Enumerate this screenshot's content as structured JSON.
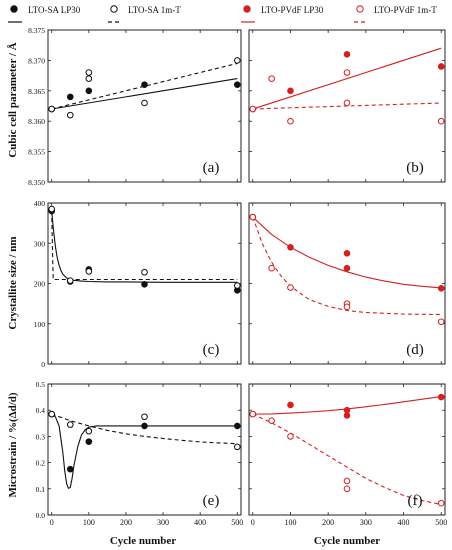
{
  "colors": {
    "black": "#111111",
    "red": "#d42020"
  },
  "legend": [
    {
      "label": "LTO-SA LP30",
      "color": "#111111",
      "marker": "filled",
      "line": "solid"
    },
    {
      "label": "LTO-SA 1m-T",
      "color": "#111111",
      "marker": "open",
      "line": "dashed"
    },
    {
      "label": "LTO-PVdF LP30",
      "color": "#d42020",
      "marker": "filled",
      "line": "solid"
    },
    {
      "label": "LTO-PVdF 1m-T",
      "color": "#d42020",
      "marker": "open",
      "line": "dashed"
    }
  ],
  "axes": {
    "xlabel": "Cycle number",
    "row_ylabels": [
      "Cubic cell parameter / Å",
      "Crystallite size / nm",
      "Microstrain / %(Δd/d)"
    ]
  },
  "chart_data": [
    {
      "type": "scatter",
      "panel": "(a)",
      "xlim": [
        -10,
        510
      ],
      "ylim": [
        8.35,
        8.375
      ],
      "xticks": [
        0,
        100,
        200,
        300,
        400,
        500
      ],
      "yticks": [
        "8.350",
        "8.355",
        "8.360",
        "8.365",
        "8.370",
        "8.375"
      ],
      "show_yticklabels": true,
      "show_xticklabels": false,
      "series": [
        {
          "name": "LTO-SA LP30",
          "color": "#111111",
          "marker": "filled",
          "x": [
            0,
            50,
            100,
            250,
            500
          ],
          "y": [
            8.362,
            8.364,
            8.365,
            8.366,
            8.366
          ],
          "fit": {
            "dash": false,
            "x": [
              0,
              500
            ],
            "y": [
              8.362,
              8.367
            ]
          }
        },
        {
          "name": "LTO-SA 1m-T",
          "color": "#111111",
          "marker": "open",
          "x": [
            0,
            50,
            100,
            100,
            250,
            500
          ],
          "y": [
            8.362,
            8.361,
            8.368,
            8.367,
            8.363,
            8.37
          ],
          "fit": {
            "dash": true,
            "x": [
              0,
              500
            ],
            "y": [
              8.362,
              8.3695
            ]
          }
        }
      ]
    },
    {
      "type": "scatter",
      "panel": "(b)",
      "xlim": [
        -10,
        510
      ],
      "ylim": [
        8.35,
        8.375
      ],
      "xticks": [
        0,
        100,
        200,
        300,
        400,
        500
      ],
      "yticks": [
        "8.350",
        "8.355",
        "8.360",
        "8.365",
        "8.370",
        "8.375"
      ],
      "show_yticklabels": false,
      "show_xticklabels": false,
      "series": [
        {
          "name": "LTO-PVdF LP30",
          "color": "#d42020",
          "marker": "filled",
          "x": [
            0,
            100,
            250,
            500
          ],
          "y": [
            8.362,
            8.365,
            8.371,
            8.369
          ],
          "fit": {
            "dash": false,
            "x": [
              0,
              500
            ],
            "y": [
              8.362,
              8.372
            ]
          }
        },
        {
          "name": "LTO-PVdF 1m-T",
          "color": "#d42020",
          "marker": "open",
          "x": [
            0,
            50,
            100,
            250,
            250,
            500
          ],
          "y": [
            8.362,
            8.367,
            8.36,
            8.368,
            8.363,
            8.36
          ],
          "fit": {
            "dash": true,
            "x": [
              0,
              500
            ],
            "y": [
              8.362,
              8.363
            ]
          }
        }
      ]
    },
    {
      "type": "scatter",
      "panel": "(c)",
      "xlim": [
        -10,
        510
      ],
      "ylim": [
        0,
        400
      ],
      "xticks": [
        0,
        100,
        200,
        300,
        400,
        500
      ],
      "yticks": [
        "0",
        "100",
        "200",
        "300",
        "400"
      ],
      "show_yticklabels": true,
      "show_xticklabels": false,
      "series": [
        {
          "name": "LTO-SA LP30",
          "color": "#111111",
          "marker": "filled",
          "x": [
            0,
            50,
            100,
            250,
            500
          ],
          "y": [
            380,
            205,
            235,
            198,
            183
          ],
          "fit": {
            "dash": false,
            "x": [
              0,
              5,
              10,
              15,
              20,
              25,
              30,
              40,
              50,
              60,
              80,
              100,
              150,
              200,
              300,
              400,
              500
            ],
            "y": [
              380,
              330,
              292,
              263,
              245,
              232,
              223,
              214,
              210,
              208,
              206,
              205,
              204,
              204,
              203,
              203,
              203
            ]
          }
        },
        {
          "name": "LTO-SA 1m-T",
          "color": "#111111",
          "marker": "open",
          "x": [
            0,
            50,
            100,
            250,
            500
          ],
          "y": [
            385,
            207,
            230,
            228,
            195
          ],
          "fit": {
            "dash": true,
            "x": [
              0,
              2,
              4,
              500
            ],
            "y": [
              380,
              280,
              210,
              210
            ]
          }
        }
      ]
    },
    {
      "type": "scatter",
      "panel": "(d)",
      "xlim": [
        -10,
        510
      ],
      "ylim": [
        0,
        400
      ],
      "xticks": [
        0,
        100,
        200,
        300,
        400,
        500
      ],
      "yticks": [
        "0",
        "100",
        "200",
        "300",
        "400"
      ],
      "show_yticklabels": false,
      "show_xticklabels": false,
      "series": [
        {
          "name": "LTO-PVdF LP30",
          "color": "#d42020",
          "marker": "filled",
          "x": [
            0,
            100,
            250,
            250,
            500
          ],
          "y": [
            365,
            290,
            275,
            238,
            188
          ],
          "fit": {
            "dash": false,
            "x": [
              0,
              50,
              100,
              150,
              200,
              250,
              300,
              350,
              400,
              450,
              500
            ],
            "y": [
              365,
              322,
              290,
              265,
              245,
              229,
              216,
              206,
              198,
              193,
              189
            ]
          }
        },
        {
          "name": "LTO-PVdF 1m-T",
          "color": "#d42020",
          "marker": "open",
          "x": [
            0,
            50,
            100,
            250,
            250,
            500
          ],
          "y": [
            365,
            238,
            190,
            150,
            142,
            105
          ],
          "fit": {
            "dash": true,
            "x": [
              0,
              25,
              50,
              75,
              100,
              150,
              200,
              250,
              300,
              400,
              500
            ],
            "y": [
              365,
              300,
              253,
              219,
              193,
              160,
              143,
              133,
              128,
              124,
              123
            ]
          }
        }
      ]
    },
    {
      "type": "scatter",
      "panel": "(e)",
      "xlim": [
        -10,
        510
      ],
      "ylim": [
        0,
        0.5
      ],
      "xticks": [
        0,
        100,
        200,
        300,
        400,
        500
      ],
      "yticks": [
        "0.0",
        "0.1",
        "0.2",
        "0.3",
        "0.4",
        "0.5"
      ],
      "show_yticklabels": true,
      "show_xticklabels": true,
      "series": [
        {
          "name": "LTO-SA LP30",
          "color": "#111111",
          "marker": "filled",
          "x": [
            0,
            50,
            100,
            250,
            500
          ],
          "y": [
            0.385,
            0.175,
            0.28,
            0.34,
            0.34
          ],
          "fit": {
            "dash": false,
            "x": [
              0,
              10,
              20,
              30,
              35,
              40,
              45,
              50,
              55,
              60,
              70,
              80,
              90,
              100,
              120,
              150,
              200,
              500
            ],
            "y": [
              0.385,
              0.375,
              0.34,
              0.24,
              0.17,
              0.12,
              0.102,
              0.105,
              0.14,
              0.19,
              0.26,
              0.305,
              0.325,
              0.335,
              0.34,
              0.34,
              0.34,
              0.34
            ]
          }
        },
        {
          "name": "LTO-SA 1m-T",
          "color": "#111111",
          "marker": "open",
          "x": [
            0,
            50,
            100,
            250,
            500
          ],
          "y": [
            0.385,
            0.345,
            0.32,
            0.375,
            0.26
          ],
          "fit": {
            "dash": true,
            "x": [
              0,
              50,
              100,
              150,
              200,
              250,
              300,
              350,
              400,
              450,
              500
            ],
            "y": [
              0.385,
              0.36,
              0.34,
              0.323,
              0.31,
              0.3,
              0.292,
              0.285,
              0.279,
              0.275,
              0.272
            ]
          }
        }
      ]
    },
    {
      "type": "scatter",
      "panel": "(f)",
      "xlim": [
        -10,
        510
      ],
      "ylim": [
        0,
        0.5
      ],
      "xticks": [
        0,
        100,
        200,
        300,
        400,
        500
      ],
      "yticks": [
        "0.0",
        "0.1",
        "0.2",
        "0.3",
        "0.4",
        "0.5"
      ],
      "show_yticklabels": false,
      "show_xticklabels": true,
      "series": [
        {
          "name": "LTO-PVdF LP30",
          "color": "#d42020",
          "marker": "filled",
          "x": [
            0,
            100,
            250,
            250,
            500
          ],
          "y": [
            0.385,
            0.42,
            0.4,
            0.38,
            0.45
          ],
          "fit": {
            "dash": false,
            "x": [
              0,
              50,
              100,
              150,
              200,
              250,
              300,
              350,
              400,
              450,
              500
            ],
            "y": [
              0.385,
              0.386,
              0.389,
              0.393,
              0.398,
              0.405,
              0.413,
              0.422,
              0.432,
              0.442,
              0.452
            ]
          }
        },
        {
          "name": "LTO-PVdF 1m-T",
          "color": "#d42020",
          "marker": "open",
          "x": [
            0,
            50,
            100,
            250,
            250,
            500
          ],
          "y": [
            0.385,
            0.36,
            0.3,
            0.13,
            0.1,
            0.045
          ],
          "fit": {
            "dash": true,
            "x": [
              0,
              50,
              100,
              150,
              200,
              250,
              300,
              350,
              400,
              450,
              500
            ],
            "y": [
              0.385,
              0.352,
              0.313,
              0.27,
              0.226,
              0.183,
              0.14,
              0.105,
              0.075,
              0.055,
              0.04
            ]
          }
        }
      ]
    }
  ]
}
